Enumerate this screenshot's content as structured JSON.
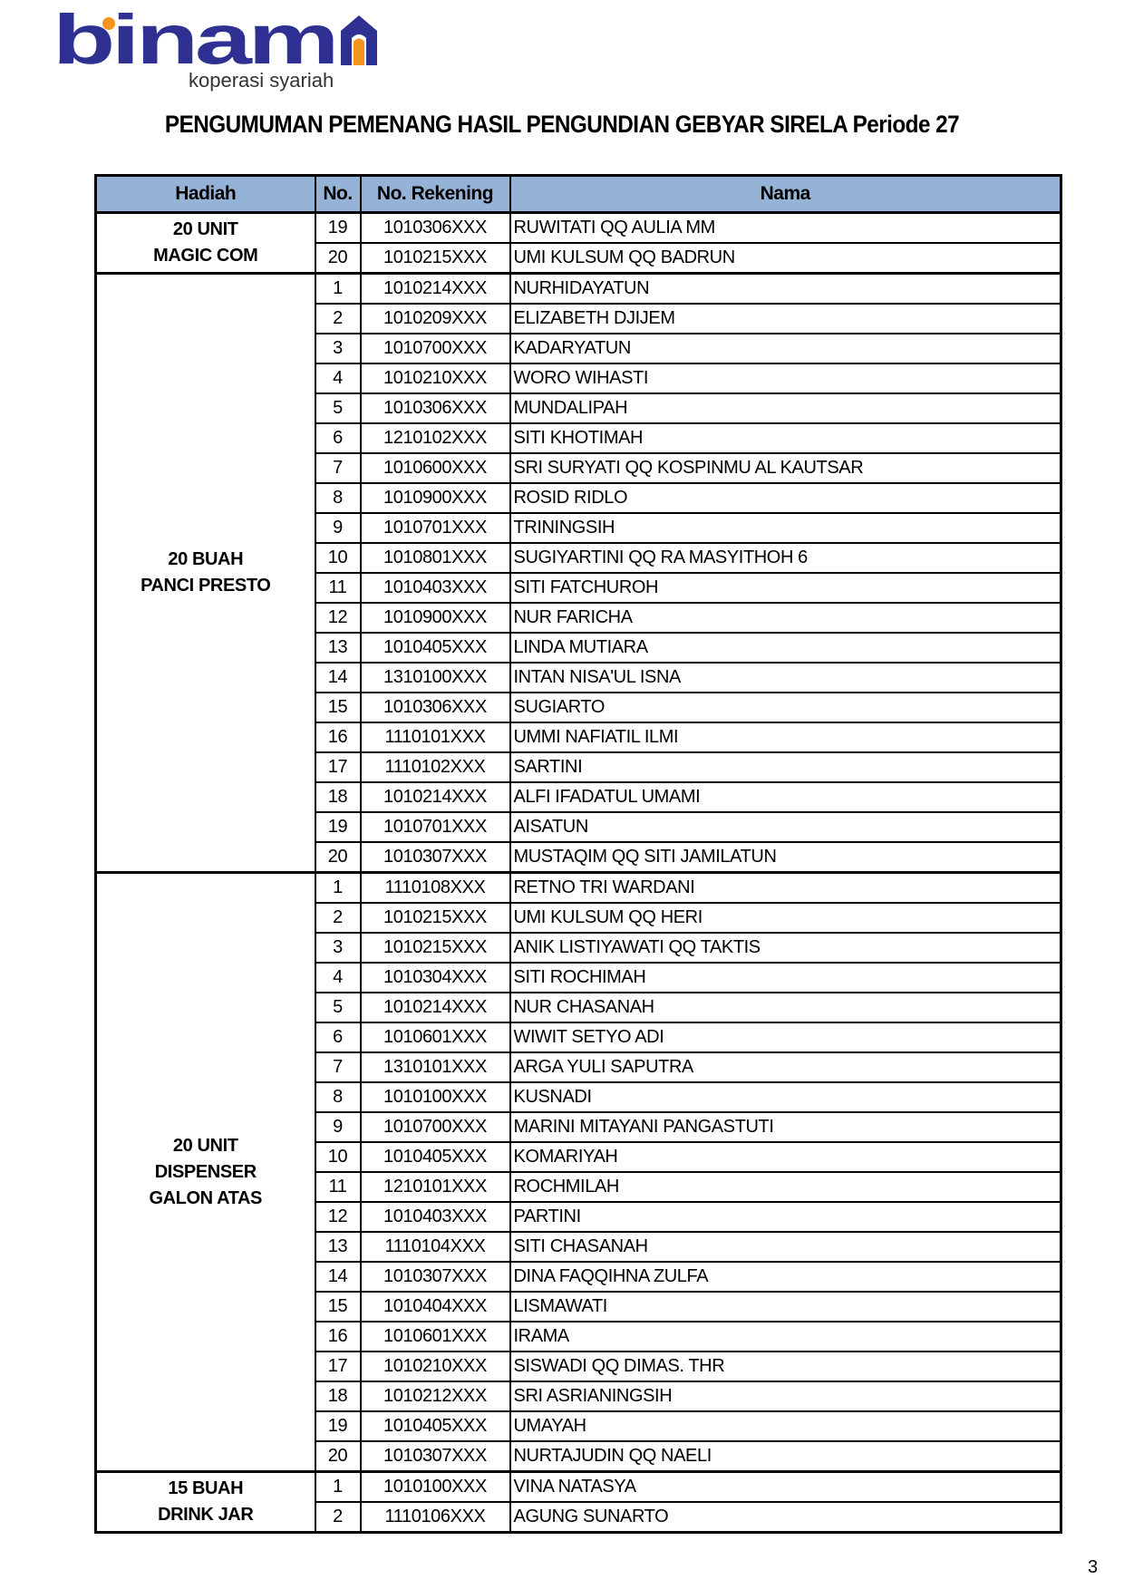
{
  "logo": {
    "wordmark": "binama",
    "tagline": "koperasi syariah",
    "colors": {
      "navy": "#2e3192",
      "orange": "#f7941d"
    }
  },
  "title": "PENGUMUMAN PEMENANG HASIL PENGUNDIAN GEBYAR SIRELA  Periode 27",
  "table": {
    "headers": [
      "Hadiah",
      "No.",
      "No. Rekening",
      "Nama"
    ],
    "header_color": "#95b3d7",
    "groups": [
      {
        "hadiah": "20 UNIT\nMAGIC COM",
        "rows": [
          [
            "19",
            "1010306XXX",
            "RUWITATI QQ AULIA MM"
          ],
          [
            "20",
            "1010215XXX",
            "UMI KULSUM QQ BADRUN"
          ]
        ]
      },
      {
        "hadiah": "20 BUAH\nPANCI PRESTO",
        "rows": [
          [
            "1",
            "1010214XXX",
            "NURHIDAYATUN"
          ],
          [
            "2",
            "1010209XXX",
            "ELIZABETH DJIJEM"
          ],
          [
            "3",
            "1010700XXX",
            "KADARYATUN"
          ],
          [
            "4",
            "1010210XXX",
            "WORO WIHASTI"
          ],
          [
            "5",
            "1010306XXX",
            "MUNDALIPAH"
          ],
          [
            "6",
            "1210102XXX",
            "SITI KHOTIMAH"
          ],
          [
            "7",
            "1010600XXX",
            "SRI SURYATI QQ KOSPINMU AL KAUTSAR"
          ],
          [
            "8",
            "1010900XXX",
            "ROSID RIDLO"
          ],
          [
            "9",
            "1010701XXX",
            "TRININGSIH"
          ],
          [
            "10",
            "1010801XXX",
            "SUGIYARTINI QQ RA MASYITHOH 6"
          ],
          [
            "11",
            "1010403XXX",
            "SITI FATCHUROH"
          ],
          [
            "12",
            "1010900XXX",
            "NUR FARICHA"
          ],
          [
            "13",
            "1010405XXX",
            "LINDA MUTIARA"
          ],
          [
            "14",
            "1310100XXX",
            "INTAN NISA'UL ISNA"
          ],
          [
            "15",
            "1010306XXX",
            "SUGIARTO"
          ],
          [
            "16",
            "1110101XXX",
            "UMMI NAFIATIL ILMI"
          ],
          [
            "17",
            "1110102XXX",
            "SARTINI"
          ],
          [
            "18",
            "1010214XXX",
            "ALFI IFADATUL UMAMI"
          ],
          [
            "19",
            "1010701XXX",
            "AISATUN"
          ],
          [
            "20",
            "1010307XXX",
            "MUSTAQIM QQ SITI JAMILATUN"
          ]
        ]
      },
      {
        "hadiah": "20 UNIT\nDISPENSER\nGALON ATAS",
        "rows": [
          [
            "1",
            "1110108XXX",
            "RETNO TRI WARDANI"
          ],
          [
            "2",
            "1010215XXX",
            "UMI KULSUM QQ HERI"
          ],
          [
            "3",
            "1010215XXX",
            "ANIK LISTIYAWATI QQ TAKTIS"
          ],
          [
            "4",
            "1010304XXX",
            "SITI ROCHIMAH"
          ],
          [
            "5",
            "1010214XXX",
            "NUR CHASANAH"
          ],
          [
            "6",
            "1010601XXX",
            "WIWIT SETYO ADI"
          ],
          [
            "7",
            "1310101XXX",
            "ARGA YULI SAPUTRA"
          ],
          [
            "8",
            "1010100XXX",
            "KUSNADI"
          ],
          [
            "9",
            "1010700XXX",
            "MARINI MITAYANI  PANGASTUTI"
          ],
          [
            "10",
            "1010405XXX",
            "KOMARIYAH"
          ],
          [
            "11",
            "1210101XXX",
            "ROCHMILAH"
          ],
          [
            "12",
            "1010403XXX",
            "PARTINI"
          ],
          [
            "13",
            "1110104XXX",
            "SITI CHASANAH"
          ],
          [
            "14",
            "1010307XXX",
            "DINA FAQQIHNA ZULFA"
          ],
          [
            "15",
            "1010404XXX",
            "LISMAWATI"
          ],
          [
            "16",
            "1010601XXX",
            "IRAMA"
          ],
          [
            "17",
            "1010210XXX",
            "SISWADI QQ DIMAS. THR"
          ],
          [
            "18",
            "1010212XXX",
            "SRI ASRIANINGSIH"
          ],
          [
            "19",
            "1010405XXX",
            "UMAYAH"
          ],
          [
            "20",
            "1010307XXX",
            "NURTAJUDIN QQ NAELI"
          ]
        ]
      },
      {
        "hadiah": "15 BUAH\nDRINK JAR",
        "rows": [
          [
            "1",
            "1010100XXX",
            "VINA NATASYA"
          ],
          [
            "2",
            "1110106XXX",
            "AGUNG SUNARTO"
          ]
        ]
      }
    ]
  },
  "page_number": "3"
}
